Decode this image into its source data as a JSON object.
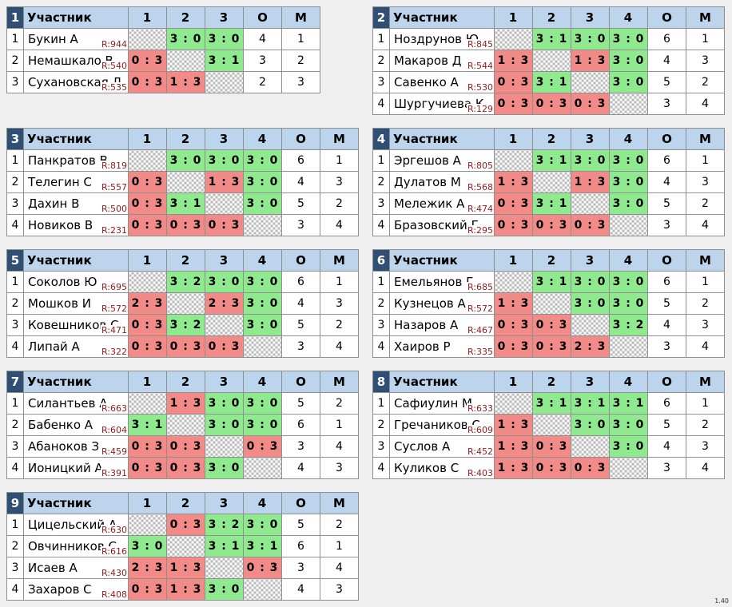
{
  "header": {
    "player": "Участник",
    "points": "О",
    "place": "М"
  },
  "version": "1.40",
  "groups": [
    {
      "num": "1",
      "cols": [
        "1",
        "2",
        "3"
      ],
      "rows": [
        {
          "n": "1",
          "name": "Букин А",
          "rating": "R:944",
          "cells": [
            [
              "",
              "x"
            ],
            [
              "3 : 0",
              "w"
            ],
            [
              "3 : 0",
              "w"
            ]
          ],
          "pts": "4",
          "place": "1"
        },
        {
          "n": "2",
          "name": "Немашкало В",
          "rating": "R:540",
          "cells": [
            [
              "0 : 3",
              "l"
            ],
            [
              "",
              "x"
            ],
            [
              "3 : 1",
              "w"
            ]
          ],
          "pts": "3",
          "place": "2"
        },
        {
          "n": "3",
          "name": "Сухановская Л",
          "rating": "R:535",
          "cells": [
            [
              "0 : 3",
              "l"
            ],
            [
              "1 : 3",
              "l"
            ],
            [
              "",
              "x"
            ]
          ],
          "pts": "2",
          "place": "3"
        }
      ]
    },
    {
      "num": "2",
      "cols": [
        "1",
        "2",
        "3",
        "4"
      ],
      "rows": [
        {
          "n": "1",
          "name": "Ноздрунов Ю",
          "rating": "R:845",
          "cells": [
            [
              "",
              "x"
            ],
            [
              "3 : 1",
              "w"
            ],
            [
              "3 : 0",
              "w"
            ],
            [
              "3 : 0",
              "w"
            ]
          ],
          "pts": "6",
          "place": "1"
        },
        {
          "n": "2",
          "name": "Макаров Д",
          "rating": "R:544",
          "cells": [
            [
              "1 : 3",
              "l"
            ],
            [
              "",
              "x"
            ],
            [
              "1 : 3",
              "l"
            ],
            [
              "3 : 0",
              "w"
            ]
          ],
          "pts": "4",
          "place": "3"
        },
        {
          "n": "3",
          "name": "Савенко А",
          "rating": "R:530",
          "cells": [
            [
              "0 : 3",
              "l"
            ],
            [
              "3 : 1",
              "w"
            ],
            [
              "",
              "x"
            ],
            [
              "3 : 0",
              "w"
            ]
          ],
          "pts": "5",
          "place": "2"
        },
        {
          "n": "4",
          "name": "Шургучиева К",
          "rating": "R:129",
          "cells": [
            [
              "0 : 3",
              "l"
            ],
            [
              "0 : 3",
              "l"
            ],
            [
              "0 : 3",
              "l"
            ],
            [
              "",
              "x"
            ]
          ],
          "pts": "3",
          "place": "4"
        }
      ]
    },
    {
      "num": "3",
      "cols": [
        "1",
        "2",
        "3",
        "4"
      ],
      "rows": [
        {
          "n": "1",
          "name": "Панкратов В",
          "rating": "R:819",
          "cells": [
            [
              "",
              "x"
            ],
            [
              "3 : 0",
              "w"
            ],
            [
              "3 : 0",
              "w"
            ],
            [
              "3 : 0",
              "w"
            ]
          ],
          "pts": "6",
          "place": "1"
        },
        {
          "n": "2",
          "name": "Телегин С",
          "rating": "R:557",
          "cells": [
            [
              "0 : 3",
              "l"
            ],
            [
              "",
              "x"
            ],
            [
              "1 : 3",
              "l"
            ],
            [
              "3 : 0",
              "w"
            ]
          ],
          "pts": "4",
          "place": "3"
        },
        {
          "n": "3",
          "name": "Дахин В",
          "rating": "R:500",
          "cells": [
            [
              "0 : 3",
              "l"
            ],
            [
              "3 : 1",
              "w"
            ],
            [
              "",
              "x"
            ],
            [
              "3 : 0",
              "w"
            ]
          ],
          "pts": "5",
          "place": "2"
        },
        {
          "n": "4",
          "name": "Новиков В",
          "rating": "R:231",
          "cells": [
            [
              "0 : 3",
              "l"
            ],
            [
              "0 : 3",
              "l"
            ],
            [
              "0 : 3",
              "l"
            ],
            [
              "",
              "x"
            ]
          ],
          "pts": "3",
          "place": "4"
        }
      ]
    },
    {
      "num": "4",
      "cols": [
        "1",
        "2",
        "3",
        "4"
      ],
      "rows": [
        {
          "n": "1",
          "name": "Эргешов А",
          "rating": "R:805",
          "cells": [
            [
              "",
              "x"
            ],
            [
              "3 : 1",
              "w"
            ],
            [
              "3 : 0",
              "w"
            ],
            [
              "3 : 0",
              "w"
            ]
          ],
          "pts": "6",
          "place": "1"
        },
        {
          "n": "2",
          "name": "Дулатов М",
          "rating": "R:568",
          "cells": [
            [
              "1 : 3",
              "l"
            ],
            [
              "",
              "x"
            ],
            [
              "1 : 3",
              "l"
            ],
            [
              "3 : 0",
              "w"
            ]
          ],
          "pts": "4",
          "place": "3"
        },
        {
          "n": "3",
          "name": "Мележик А",
          "rating": "R:474",
          "cells": [
            [
              "0 : 3",
              "l"
            ],
            [
              "3 : 1",
              "w"
            ],
            [
              "",
              "x"
            ],
            [
              "3 : 0",
              "w"
            ]
          ],
          "pts": "5",
          "place": "2"
        },
        {
          "n": "4",
          "name": "Бразовский Г",
          "rating": "R:295",
          "cells": [
            [
              "0 : 3",
              "l"
            ],
            [
              "0 : 3",
              "l"
            ],
            [
              "0 : 3",
              "l"
            ],
            [
              "",
              "x"
            ]
          ],
          "pts": "3",
          "place": "4"
        }
      ]
    },
    {
      "num": "5",
      "cols": [
        "1",
        "2",
        "3",
        "4"
      ],
      "rows": [
        {
          "n": "1",
          "name": "Соколов Ю",
          "rating": "R:695",
          "cells": [
            [
              "",
              "x"
            ],
            [
              "3 : 2",
              "w"
            ],
            [
              "3 : 0",
              "w"
            ],
            [
              "3 : 0",
              "w"
            ]
          ],
          "pts": "6",
          "place": "1"
        },
        {
          "n": "2",
          "name": "Мошков И",
          "rating": "R:572",
          "cells": [
            [
              "2 : 3",
              "l"
            ],
            [
              "",
              "x"
            ],
            [
              "2 : 3",
              "l"
            ],
            [
              "3 : 0",
              "w"
            ]
          ],
          "pts": "4",
          "place": "3"
        },
        {
          "n": "3",
          "name": "Ковешников С",
          "rating": "R:471",
          "cells": [
            [
              "0 : 3",
              "l"
            ],
            [
              "3 : 2",
              "w"
            ],
            [
              "",
              "x"
            ],
            [
              "3 : 0",
              "w"
            ]
          ],
          "pts": "5",
          "place": "2"
        },
        {
          "n": "4",
          "name": "Липай А",
          "rating": "R:322",
          "cells": [
            [
              "0 : 3",
              "l"
            ],
            [
              "0 : 3",
              "l"
            ],
            [
              "0 : 3",
              "l"
            ],
            [
              "",
              "x"
            ]
          ],
          "pts": "3",
          "place": "4"
        }
      ]
    },
    {
      "num": "6",
      "cols": [
        "1",
        "2",
        "3",
        "4"
      ],
      "rows": [
        {
          "n": "1",
          "name": "Емельянов Г",
          "rating": "R:685",
          "cells": [
            [
              "",
              "x"
            ],
            [
              "3 : 1",
              "w"
            ],
            [
              "3 : 0",
              "w"
            ],
            [
              "3 : 0",
              "w"
            ]
          ],
          "pts": "6",
          "place": "1"
        },
        {
          "n": "2",
          "name": "Кузнецов А",
          "rating": "R:572",
          "cells": [
            [
              "1 : 3",
              "l"
            ],
            [
              "",
              "x"
            ],
            [
              "3 : 0",
              "w"
            ],
            [
              "3 : 0",
              "w"
            ]
          ],
          "pts": "5",
          "place": "2"
        },
        {
          "n": "3",
          "name": "Назаров А",
          "rating": "R:467",
          "cells": [
            [
              "0 : 3",
              "l"
            ],
            [
              "0 : 3",
              "l"
            ],
            [
              "",
              "x"
            ],
            [
              "3 : 2",
              "w"
            ]
          ],
          "pts": "4",
          "place": "3"
        },
        {
          "n": "4",
          "name": "Хаиров Р",
          "rating": "R:335",
          "cells": [
            [
              "0 : 3",
              "l"
            ],
            [
              "0 : 3",
              "l"
            ],
            [
              "2 : 3",
              "l"
            ],
            [
              "",
              "x"
            ]
          ],
          "pts": "3",
          "place": "4"
        }
      ]
    },
    {
      "num": "7",
      "cols": [
        "1",
        "2",
        "3",
        "4"
      ],
      "rows": [
        {
          "n": "1",
          "name": "Силантьев А",
          "rating": "R:663",
          "cells": [
            [
              "",
              "x"
            ],
            [
              "1 : 3",
              "l"
            ],
            [
              "3 : 0",
              "w"
            ],
            [
              "3 : 0",
              "w"
            ]
          ],
          "pts": "5",
          "place": "2"
        },
        {
          "n": "2",
          "name": "Бабенко А",
          "rating": "R:604",
          "cells": [
            [
              "3 : 1",
              "w"
            ],
            [
              "",
              "x"
            ],
            [
              "3 : 0",
              "w"
            ],
            [
              "3 : 0",
              "w"
            ]
          ],
          "pts": "6",
          "place": "1"
        },
        {
          "n": "3",
          "name": "Абаноков З",
          "rating": "R:459",
          "cells": [
            [
              "0 : 3",
              "l"
            ],
            [
              "0 : 3",
              "l"
            ],
            [
              "",
              "x"
            ],
            [
              "0 : 3",
              "l"
            ]
          ],
          "pts": "3",
          "place": "4"
        },
        {
          "n": "4",
          "name": "Ионицкий А",
          "rating": "R:391",
          "cells": [
            [
              "0 : 3",
              "l"
            ],
            [
              "0 : 3",
              "l"
            ],
            [
              "3 : 0",
              "w"
            ],
            [
              "",
              "x"
            ]
          ],
          "pts": "4",
          "place": "3"
        }
      ]
    },
    {
      "num": "8",
      "cols": [
        "1",
        "2",
        "3",
        "4"
      ],
      "rows": [
        {
          "n": "1",
          "name": "Сафиулин М",
          "rating": "R:633",
          "cells": [
            [
              "",
              "x"
            ],
            [
              "3 : 1",
              "w"
            ],
            [
              "3 : 1",
              "w"
            ],
            [
              "3 : 1",
              "w"
            ]
          ],
          "pts": "6",
          "place": "1"
        },
        {
          "n": "2",
          "name": "Гречаников С",
          "rating": "R:609",
          "cells": [
            [
              "1 : 3",
              "l"
            ],
            [
              "",
              "x"
            ],
            [
              "3 : 0",
              "w"
            ],
            [
              "3 : 0",
              "w"
            ]
          ],
          "pts": "5",
          "place": "2"
        },
        {
          "n": "3",
          "name": "Суслов А",
          "rating": "R:452",
          "cells": [
            [
              "1 : 3",
              "l"
            ],
            [
              "0 : 3",
              "l"
            ],
            [
              "",
              "x"
            ],
            [
              "3 : 0",
              "w"
            ]
          ],
          "pts": "4",
          "place": "3"
        },
        {
          "n": "4",
          "name": "Куликов С",
          "rating": "R:403",
          "cells": [
            [
              "1 : 3",
              "l"
            ],
            [
              "0 : 3",
              "l"
            ],
            [
              "0 : 3",
              "l"
            ],
            [
              "",
              "x"
            ]
          ],
          "pts": "3",
          "place": "4"
        }
      ]
    },
    {
      "num": "9",
      "cols": [
        "1",
        "2",
        "3",
        "4"
      ],
      "rows": [
        {
          "n": "1",
          "name": "Цицельский А",
          "rating": "R:630",
          "cells": [
            [
              "",
              "x"
            ],
            [
              "0 : 3",
              "l"
            ],
            [
              "3 : 2",
              "w"
            ],
            [
              "3 : 0",
              "w"
            ]
          ],
          "pts": "5",
          "place": "2"
        },
        {
          "n": "2",
          "name": "Овчинников С",
          "rating": "R:616",
          "cells": [
            [
              "3 : 0",
              "w"
            ],
            [
              "",
              "x"
            ],
            [
              "3 : 1",
              "w"
            ],
            [
              "3 : 1",
              "w"
            ]
          ],
          "pts": "6",
          "place": "1"
        },
        {
          "n": "3",
          "name": "Исаев А",
          "rating": "R:430",
          "cells": [
            [
              "2 : 3",
              "l"
            ],
            [
              "1 : 3",
              "l"
            ],
            [
              "",
              "x"
            ],
            [
              "0 : 3",
              "l"
            ]
          ],
          "pts": "3",
          "place": "4"
        },
        {
          "n": "4",
          "name": "Захаров С",
          "rating": "R:408",
          "cells": [
            [
              "0 : 3",
              "l"
            ],
            [
              "1 : 3",
              "l"
            ],
            [
              "3 : 0",
              "w"
            ],
            [
              "",
              "x"
            ]
          ],
          "pts": "4",
          "place": "3"
        }
      ]
    }
  ]
}
